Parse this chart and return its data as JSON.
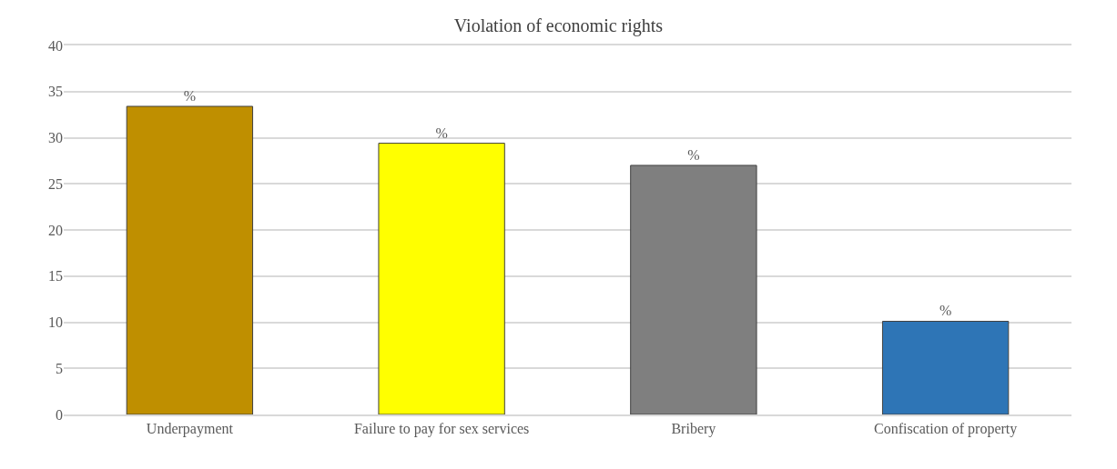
{
  "chart_data": {
    "type": "bar",
    "title": "Violation of economic rights",
    "categories": [
      "Underpayment",
      "Failure to pay for sex services",
      "Bribery",
      "Confiscation of property"
    ],
    "values": [
      33.4,
      29.4,
      27.0,
      10.1
    ],
    "colors": [
      "#bf8f00",
      "#ffff00",
      "#7f7f7f",
      "#2e75b6"
    ],
    "value_labels": [
      "%",
      "%",
      "%",
      "%"
    ],
    "ylim": [
      0,
      40
    ],
    "yticks": [
      0,
      5,
      10,
      15,
      20,
      25,
      30,
      35,
      40
    ],
    "grid": "y"
  }
}
